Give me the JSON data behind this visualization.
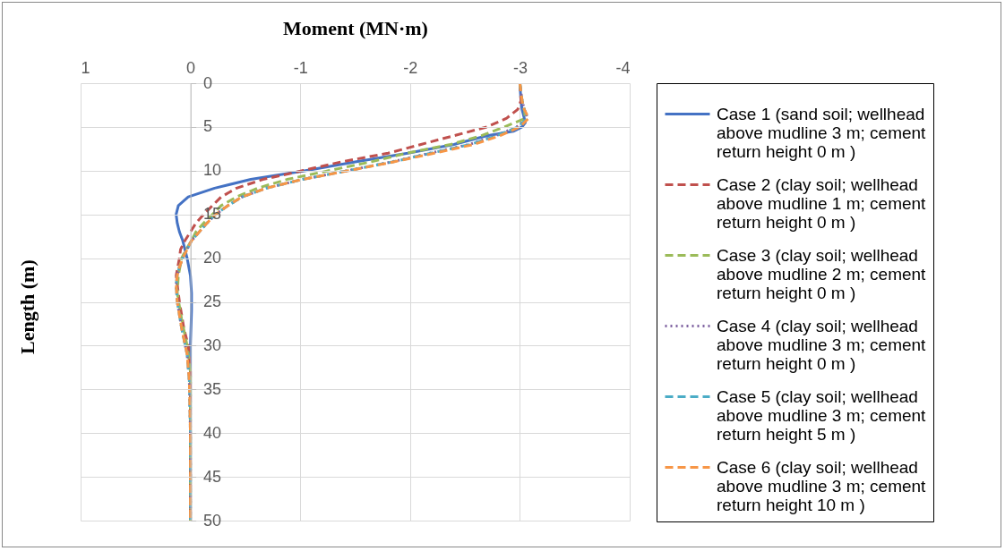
{
  "chart_data": {
    "type": "line",
    "xlabel": "Moment (MN·m)",
    "ylabel": "Length (m)",
    "xlim": [
      1,
      -4
    ],
    "xticks": [
      1,
      0,
      -1,
      -2,
      -3,
      -4
    ],
    "ylim": [
      50,
      0
    ],
    "yticks": [
      0,
      5,
      10,
      15,
      20,
      25,
      30,
      35,
      40,
      45,
      50
    ],
    "grid": true,
    "legend": "right",
    "series": [
      {
        "name": "Case 1 (sand soil; wellhead above mudline 3 m; cement return height 0 m )",
        "color": "#4472c4",
        "line_style": "solid",
        "x": [
          -3.0,
          -3.01,
          -3.02,
          -3.04,
          -3.05,
          -3.02,
          -2.94,
          -2.7,
          -2.4,
          -1.98,
          -1.5,
          -1.05,
          -0.55,
          -0.22,
          0.02,
          0.11,
          0.13,
          0.12,
          0.1,
          0.07,
          0.03,
          0.0,
          -0.01,
          -0.01,
          0,
          0,
          0,
          0,
          0
        ],
        "values": [
          0,
          2,
          3,
          4,
          4.5,
          5,
          5.5,
          6,
          7,
          8,
          9,
          10,
          11,
          12,
          13,
          14,
          15,
          16,
          17,
          18,
          20,
          22,
          24,
          26,
          30,
          35,
          40,
          45,
          50
        ]
      },
      {
        "name": "Case 2 (clay soil; wellhead above mudline 1 m; cement return height 0 m )",
        "color": "#c0504d",
        "line_style": "dashed",
        "x": [
          -3.0,
          -3.01,
          -2.98,
          -2.88,
          -2.7,
          -2.4,
          -2.1,
          -1.8,
          -1.37,
          -1.02,
          -0.66,
          -0.42,
          -0.28,
          -0.2,
          -0.12,
          -0.05,
          0,
          0.05,
          0.09,
          0.1,
          0.13,
          0.1,
          0.06,
          0.02,
          0,
          0,
          0
        ],
        "values": [
          0,
          2,
          3,
          4,
          5,
          6,
          7,
          8,
          9,
          10,
          11,
          12,
          13,
          14,
          15,
          16,
          17,
          18,
          19,
          20,
          22,
          25,
          28,
          30,
          33,
          40,
          50
        ]
      },
      {
        "name": "Case 3 (clay soil; wellhead above mudline 2 m; cement return height 0 m )",
        "color": "#9bbb59",
        "line_style": "dashed",
        "x": [
          -3.0,
          -3.02,
          -3.04,
          -3.05,
          -2.86,
          -2.65,
          -2.37,
          -1.97,
          -1.64,
          -1.26,
          -0.88,
          -0.61,
          -0.42,
          -0.28,
          -0.2,
          -0.12,
          -0.05,
          -0.01,
          0.04,
          0.08,
          0.11,
          0.12,
          0.08,
          0.03,
          0,
          0,
          0
        ],
        "values": [
          0,
          2,
          3,
          4,
          5,
          6,
          7,
          8,
          9,
          10,
          11,
          12,
          13,
          14,
          15,
          16,
          17,
          18,
          19,
          20,
          22,
          24,
          27,
          30,
          33,
          40,
          50
        ]
      },
      {
        "name": "Case 4 (clay soil; wellhead above mudline 3 m; cement return height 0 m )",
        "color": "#8064a2",
        "line_style": "dotted",
        "x": [
          -3.0,
          -3.02,
          -3.04,
          -3.07,
          -2.97,
          -2.78,
          -2.54,
          -2.18,
          -1.83,
          -1.43,
          -1.02,
          -0.69,
          -0.47,
          -0.34,
          -0.23,
          -0.15,
          -0.08,
          -0.01,
          0.03,
          0.07,
          0.1,
          0.12,
          0.13,
          0.12,
          0.08,
          0.03,
          0.01,
          0,
          0
        ],
        "values": [
          0,
          2,
          3,
          4,
          5,
          6,
          7,
          8,
          9,
          10,
          11,
          12,
          13,
          14,
          15,
          16,
          17,
          18,
          19,
          20,
          21,
          22,
          23,
          25,
          28,
          31,
          34,
          40,
          50
        ]
      },
      {
        "name": "Case 5 (clay soil; wellhead above mudline 3 m; cement return height 5 m )",
        "color": "#4bacc6",
        "line_style": "dashed",
        "x": [
          -3.0,
          -3.02,
          -3.04,
          -3.07,
          -2.98,
          -2.79,
          -2.55,
          -2.19,
          -1.84,
          -1.43,
          -1.02,
          -0.69,
          -0.47,
          -0.34,
          -0.23,
          -0.15,
          -0.08,
          -0.01,
          0.03,
          0.07,
          0.1,
          0.12,
          0.13,
          0.12,
          0.08,
          0.03,
          0.01,
          0,
          0
        ],
        "values": [
          0,
          2,
          3,
          4,
          5,
          6,
          7,
          8,
          9,
          10,
          11,
          12,
          13,
          14,
          15,
          16,
          17,
          18,
          19,
          20,
          21,
          22,
          23,
          25,
          28,
          31,
          34,
          40,
          50
        ]
      },
      {
        "name": "Case 6 (clay soil; wellhead above mudline 3 m; cement return height 10 m )",
        "color": "#f79646",
        "line_style": "dashed",
        "x": [
          -3.0,
          -3.02,
          -3.04,
          -3.08,
          -3.0,
          -2.82,
          -2.58,
          -2.22,
          -1.85,
          -1.44,
          -1.02,
          -0.69,
          -0.47,
          -0.34,
          -0.23,
          -0.15,
          -0.08,
          -0.01,
          0.03,
          0.07,
          0.1,
          0.12,
          0.13,
          0.12,
          0.08,
          0.03,
          0.01,
          0,
          0
        ],
        "values": [
          0,
          2,
          3,
          4,
          5,
          6,
          7,
          8,
          9,
          10,
          11,
          12,
          13,
          14,
          15,
          16,
          17,
          18,
          19,
          20,
          21,
          22,
          23,
          25,
          28,
          31,
          34,
          40,
          50
        ]
      }
    ]
  }
}
